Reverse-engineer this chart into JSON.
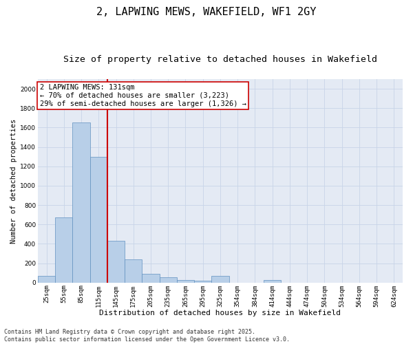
{
  "title": "2, LAPWING MEWS, WAKEFIELD, WF1 2GY",
  "subtitle": "Size of property relative to detached houses in Wakefield",
  "xlabel": "Distribution of detached houses by size in Wakefield",
  "ylabel": "Number of detached properties",
  "categories": [
    "25sqm",
    "55sqm",
    "85sqm",
    "115sqm",
    "145sqm",
    "175sqm",
    "205sqm",
    "235sqm",
    "265sqm",
    "295sqm",
    "325sqm",
    "354sqm",
    "384sqm",
    "414sqm",
    "444sqm",
    "474sqm",
    "504sqm",
    "534sqm",
    "564sqm",
    "594sqm",
    "624sqm"
  ],
  "values": [
    70,
    670,
    1650,
    1300,
    430,
    240,
    90,
    55,
    30,
    20,
    70,
    0,
    0,
    30,
    0,
    0,
    0,
    0,
    0,
    0,
    0
  ],
  "bar_color": "#b8cfe8",
  "bar_edge_color": "#6090c0",
  "vline_color": "#cc0000",
  "annotation_text": "2 LAPWING MEWS: 131sqm\n← 70% of detached houses are smaller (3,223)\n29% of semi-detached houses are larger (1,326) →",
  "annotation_box_color": "#ffffff",
  "annotation_box_edge_color": "#cc0000",
  "ylim": [
    0,
    2100
  ],
  "yticks": [
    0,
    200,
    400,
    600,
    800,
    1000,
    1200,
    1400,
    1600,
    1800,
    2000
  ],
  "grid_color": "#c8d4e8",
  "bg_color": "#e4eaf4",
  "footnote": "Contains HM Land Registry data © Crown copyright and database right 2025.\nContains public sector information licensed under the Open Government Licence v3.0.",
  "title_fontsize": 11,
  "subtitle_fontsize": 9.5,
  "xlabel_fontsize": 8,
  "ylabel_fontsize": 7.5,
  "tick_fontsize": 6.5,
  "annotation_fontsize": 7.5,
  "footnote_fontsize": 6
}
